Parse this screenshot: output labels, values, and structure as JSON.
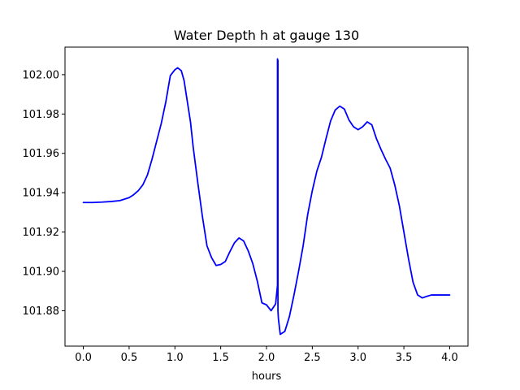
{
  "chart_data": {
    "type": "line",
    "title": "Water Depth h at gauge 130",
    "xlabel": "hours",
    "ylabel": "",
    "xlim": [
      -0.2,
      4.2
    ],
    "ylim": [
      101.862,
      102.014
    ],
    "x_ticks": [
      0.0,
      0.5,
      1.0,
      1.5,
      2.0,
      2.5,
      3.0,
      3.5,
      4.0
    ],
    "x_tick_labels": [
      "0.0",
      "0.5",
      "1.0",
      "1.5",
      "2.0",
      "2.5",
      "3.0",
      "3.5",
      "4.0"
    ],
    "y_ticks": [
      101.88,
      101.9,
      101.92,
      101.94,
      101.96,
      101.98,
      102.0
    ],
    "y_tick_labels": [
      "101.88",
      "101.90",
      "101.92",
      "101.94",
      "101.96",
      "101.98",
      "102.00"
    ],
    "grid": false,
    "series": [
      {
        "color": "#0000ff",
        "x": [
          0.0,
          0.1,
          0.2,
          0.3,
          0.4,
          0.5,
          0.55,
          0.6,
          0.65,
          0.7,
          0.75,
          0.8,
          0.85,
          0.9,
          0.95,
          1.0,
          1.03,
          1.07,
          1.1,
          1.13,
          1.17,
          1.2,
          1.25,
          1.3,
          1.35,
          1.4,
          1.45,
          1.5,
          1.55,
          1.6,
          1.65,
          1.7,
          1.75,
          1.8,
          1.85,
          1.9,
          1.95,
          2.0,
          2.05,
          2.1,
          2.12,
          2.12,
          2.125,
          2.125,
          2.13,
          2.15,
          2.2,
          2.25,
          2.3,
          2.35,
          2.4,
          2.45,
          2.5,
          2.55,
          2.6,
          2.65,
          2.7,
          2.75,
          2.8,
          2.85,
          2.9,
          2.95,
          3.0,
          3.05,
          3.1,
          3.15,
          3.2,
          3.25,
          3.3,
          3.35,
          3.4,
          3.45,
          3.5,
          3.55,
          3.6,
          3.65,
          3.7,
          3.75,
          3.8,
          3.85,
          3.9,
          3.95,
          4.0
        ],
        "y": [
          101.935,
          101.935,
          101.9352,
          101.9355,
          101.936,
          101.9375,
          101.939,
          101.941,
          101.944,
          101.949,
          101.957,
          101.966,
          101.975,
          101.986,
          101.9995,
          102.0025,
          102.0035,
          102.002,
          101.997,
          101.988,
          101.976,
          101.963,
          101.945,
          101.928,
          101.913,
          101.907,
          101.903,
          101.9035,
          101.905,
          101.91,
          101.9145,
          101.917,
          101.9155,
          101.9105,
          101.904,
          101.895,
          101.884,
          101.883,
          101.88,
          101.8835,
          101.893,
          102.008,
          102.007,
          101.88,
          101.876,
          101.868,
          101.8695,
          101.877,
          101.888,
          101.9,
          101.913,
          101.929,
          101.941,
          101.951,
          101.958,
          101.9675,
          101.9765,
          101.982,
          101.984,
          101.9825,
          101.977,
          101.9735,
          101.972,
          101.9735,
          101.976,
          101.9745,
          101.9675,
          101.962,
          101.957,
          101.9525,
          101.944,
          101.9335,
          101.92,
          101.9065,
          101.8945,
          101.888,
          101.8865,
          101.8873,
          101.888,
          101.888,
          101.888,
          101.888,
          101.888
        ]
      }
    ]
  }
}
